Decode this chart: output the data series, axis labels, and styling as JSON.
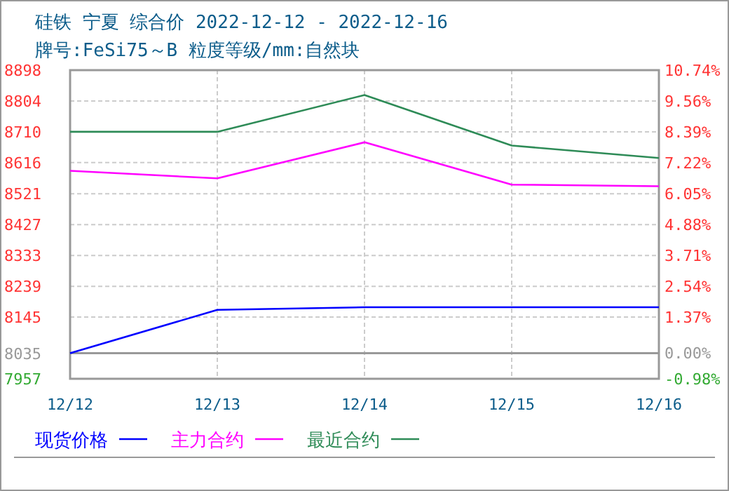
{
  "chart_data": {
    "type": "line",
    "title": "硅铁 宁夏 综合价 2022-12-12 - 2022-12-16",
    "subtitle": "牌号:FeSi75～B 粒度等级/mm:自然块",
    "categories": [
      "12/12",
      "12/13",
      "12/14",
      "12/15",
      "12/16"
    ],
    "series": [
      {
        "name": "现货价格",
        "color": "#0000ff",
        "values": [
          8035,
          8167,
          8175,
          8175,
          8175
        ]
      },
      {
        "name": "主力合约",
        "color": "#ff00ff",
        "values": [
          8591,
          8568,
          8678,
          8549,
          8544
        ]
      },
      {
        "name": "最近合约",
        "color": "#2e8b57",
        "values": [
          8710,
          8710,
          8822,
          8668,
          8630
        ]
      }
    ],
    "ylim": [
      7957,
      8898
    ],
    "yticks": [
      7957,
      8035,
      8145,
      8239,
      8333,
      8427,
      8521,
      8616,
      8710,
      8804,
      8898
    ],
    "y2lim": [
      -0.98,
      10.74
    ],
    "y2ticks": [
      {
        "value": -0.98,
        "label": "-0.98%"
      },
      {
        "value": 0,
        "label": "0.00%"
      },
      {
        "value": 1.37,
        "label": "1.37%"
      },
      {
        "value": 2.54,
        "label": "2.54%"
      },
      {
        "value": 3.71,
        "label": "3.71%"
      },
      {
        "value": 4.88,
        "label": "4.88%"
      },
      {
        "value": 6.05,
        "label": "6.05%"
      },
      {
        "value": 7.22,
        "label": "7.22%"
      },
      {
        "value": 8.39,
        "label": "8.39%"
      },
      {
        "value": 9.56,
        "label": "9.56%"
      },
      {
        "value": 10.74,
        "label": "10.74%"
      }
    ],
    "ref_lines": [
      {
        "axis": "y",
        "value": 8035,
        "color": "#999999",
        "line_style": "solid"
      }
    ],
    "grid": true,
    "legend": "bottom",
    "marker": "none",
    "line_style": "solid"
  }
}
